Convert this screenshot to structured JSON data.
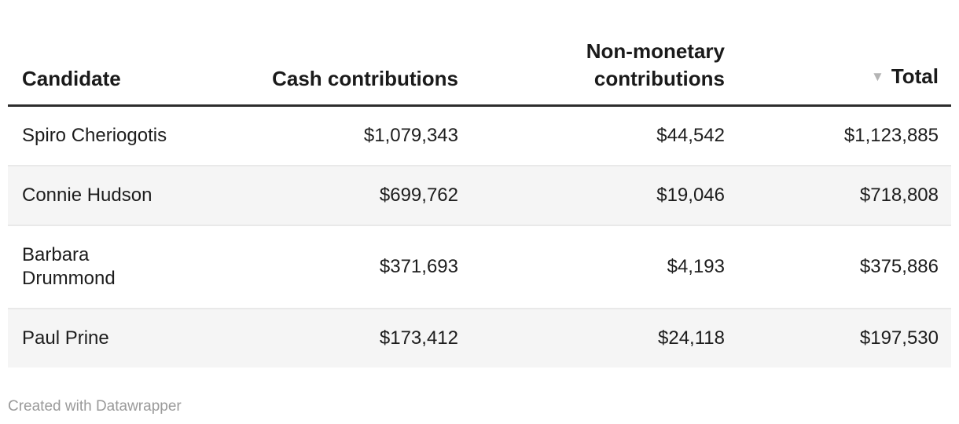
{
  "chart_data": {
    "type": "table",
    "title": "",
    "columns": [
      "Candidate",
      "Cash contributions",
      "Non-monetary contributions",
      "Total"
    ],
    "rows": [
      [
        "Spiro Cheriogotis",
        1079343,
        44542,
        1123885
      ],
      [
        "Connie Hudson",
        699762,
        19046,
        718808
      ],
      [
        "Barbara Drummond",
        371693,
        4193,
        375886
      ],
      [
        "Paul Prine",
        173412,
        24118,
        197530
      ]
    ],
    "value_format": "USD with thousands separators",
    "sort": {
      "column": "Total",
      "direction": "descending"
    },
    "layout_hints": {
      "zebra_striping": true,
      "header_rule": true,
      "numeric_columns_right_aligned": true
    }
  },
  "table": {
    "header": {
      "candidate": "Candidate",
      "cash": "Cash contributions",
      "non_monetary": "Non-monetary contributions",
      "total": "Total",
      "sort_icon": "▼"
    },
    "rows": [
      {
        "candidate": "Spiro Cheriogotis",
        "cash": "$1,079,343",
        "non_monetary": "$44,542",
        "total": "$1,123,885"
      },
      {
        "candidate": "Connie Hudson",
        "cash": "$699,762",
        "non_monetary": "$19,046",
        "total": "$718,808"
      },
      {
        "candidate": "Barbara Drummond",
        "cash": "$371,693",
        "non_monetary": "$4,193",
        "total": "$375,886"
      },
      {
        "candidate": "Paul Prine",
        "cash": "$173,412",
        "non_monetary": "$24,118",
        "total": "$197,530"
      }
    ]
  },
  "footer": {
    "attribution": "Created with Datawrapper"
  },
  "colors": {
    "text": "#1d1d1d",
    "header_text": "#1a1a1a",
    "header_rule": "#2d2d2d",
    "row_stripe": "#f5f5f5",
    "row_divider": "#e9e9e9",
    "sort_icon": "#b4b4b4",
    "attribution_text": "#9a9a9a",
    "background": "#ffffff"
  }
}
